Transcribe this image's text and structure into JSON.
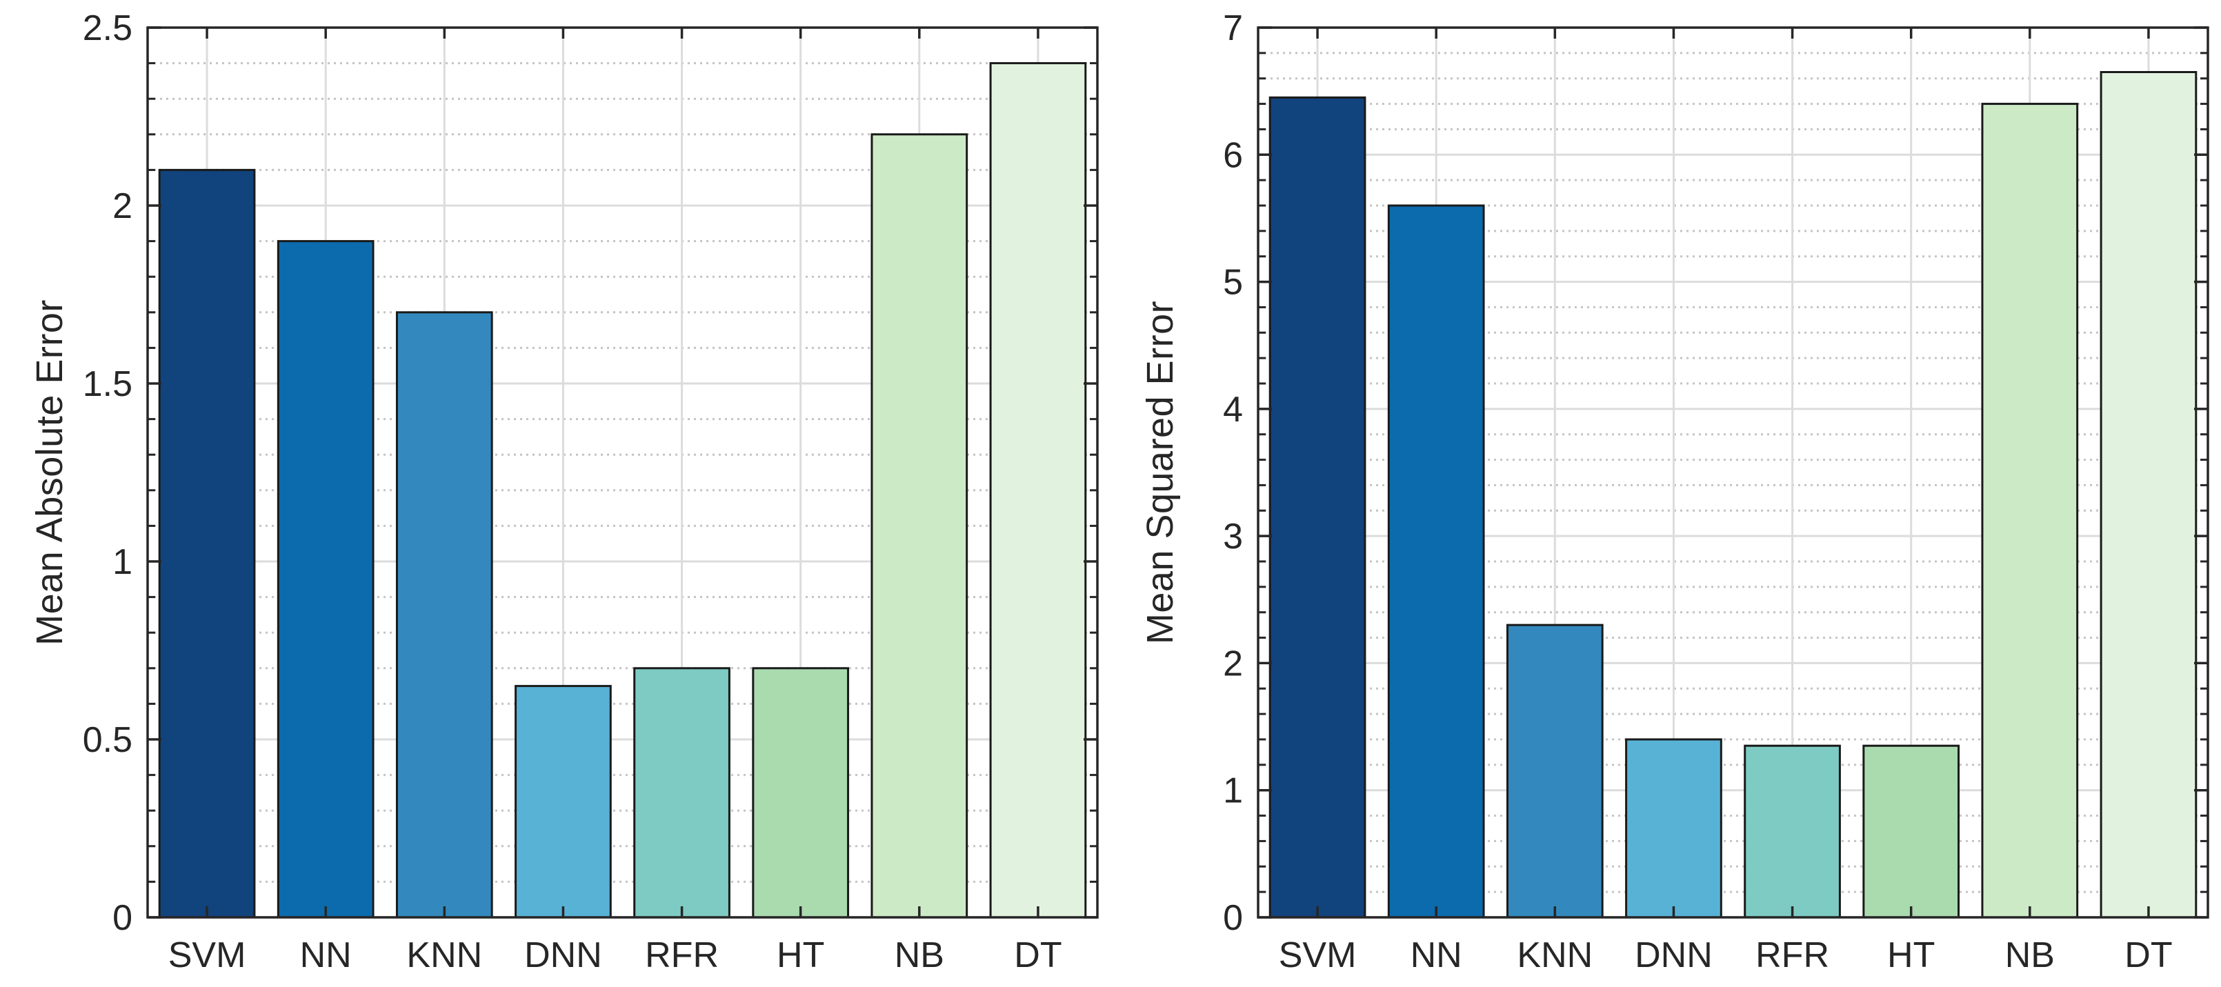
{
  "figure": {
    "background": "#ffffff",
    "axis_color": "#262626",
    "tick_label_color": "#262626",
    "grid_major_color": "#dcdcdc",
    "grid_minor_color": "#c4c4c4",
    "bar_edge_color": "#1a1a1a"
  },
  "bar_colors": [
    "#11437d",
    "#0c6bad",
    "#3389bd",
    "#58b2d6",
    "#7ecbc3",
    "#a9dbae",
    "#cdeac6",
    "#e1f3de"
  ],
  "chart_data": [
    {
      "type": "bar",
      "title": "",
      "xlabel": "",
      "ylabel": "Mean Absolute Error",
      "categories": [
        "SVM",
        "NN",
        "KNN",
        "DNN",
        "RFR",
        "HT",
        "NB",
        "DT"
      ],
      "values": [
        2.1,
        1.9,
        1.7,
        0.65,
        0.7,
        0.7,
        2.2,
        2.4
      ],
      "ylim": [
        0,
        2.5
      ],
      "ytick_labels": [
        "0",
        "0.5",
        "1",
        "1.5",
        "2",
        "2.5"
      ],
      "ytick_values": [
        0,
        0.5,
        1,
        1.5,
        2,
        2.5
      ],
      "minor_step": 0.1,
      "grid": "major-solid-minor-dotted",
      "legend": "none"
    },
    {
      "type": "bar",
      "title": "",
      "xlabel": "",
      "ylabel": "Mean Squared Error",
      "categories": [
        "SVM",
        "NN",
        "KNN",
        "DNN",
        "RFR",
        "HT",
        "NB",
        "DT"
      ],
      "values": [
        6.45,
        5.6,
        2.3,
        1.4,
        1.35,
        1.35,
        6.4,
        6.65
      ],
      "ylim": [
        0,
        7
      ],
      "ytick_labels": [
        "0",
        "1",
        "2",
        "3",
        "4",
        "5",
        "6",
        "7"
      ],
      "ytick_values": [
        0,
        1,
        2,
        3,
        4,
        5,
        6,
        7
      ],
      "minor_step": 0.2,
      "grid": "major-solid-minor-dotted",
      "legend": "none"
    }
  ]
}
